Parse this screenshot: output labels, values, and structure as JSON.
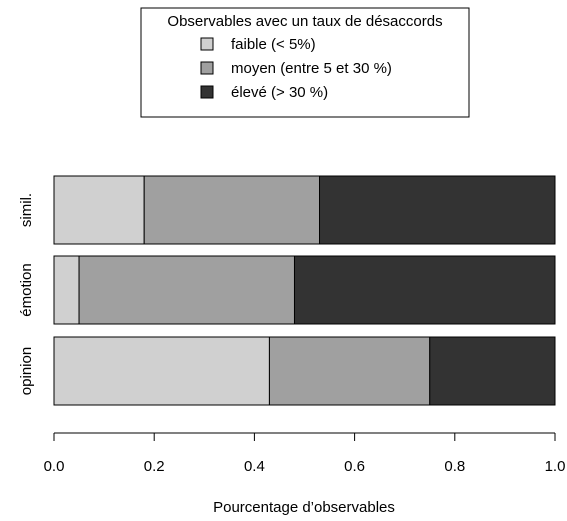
{
  "chart_data": {
    "type": "bar",
    "orientation": "horizontal",
    "stacked": true,
    "categories": [
      "opinion",
      "émotion",
      "simil."
    ],
    "series": [
      {
        "name": "faible (< 5%)",
        "color": "#d0d0d0",
        "values": [
          0.43,
          0.05,
          0.18
        ]
      },
      {
        "name": "moyen (entre 5 et 30 %)",
        "color": "#a0a0a0",
        "values": [
          0.32,
          0.43,
          0.35
        ]
      },
      {
        "name": "élevé (> 30 %)",
        "color": "#333333",
        "values": [
          0.25,
          0.52,
          0.47
        ]
      }
    ],
    "legend": {
      "title": "Observables avec un taux de désaccords",
      "placement": "top"
    },
    "xlabel": "Pourcentage d’observables",
    "xlim": [
      0,
      1
    ],
    "xticks": [
      0,
      0.2,
      0.4,
      0.6,
      0.8,
      1
    ],
    "xtick_labels": [
      "0.0",
      "0.2",
      "0.4",
      "0.6",
      "0.8",
      "1.0"
    ],
    "grid": false
  }
}
